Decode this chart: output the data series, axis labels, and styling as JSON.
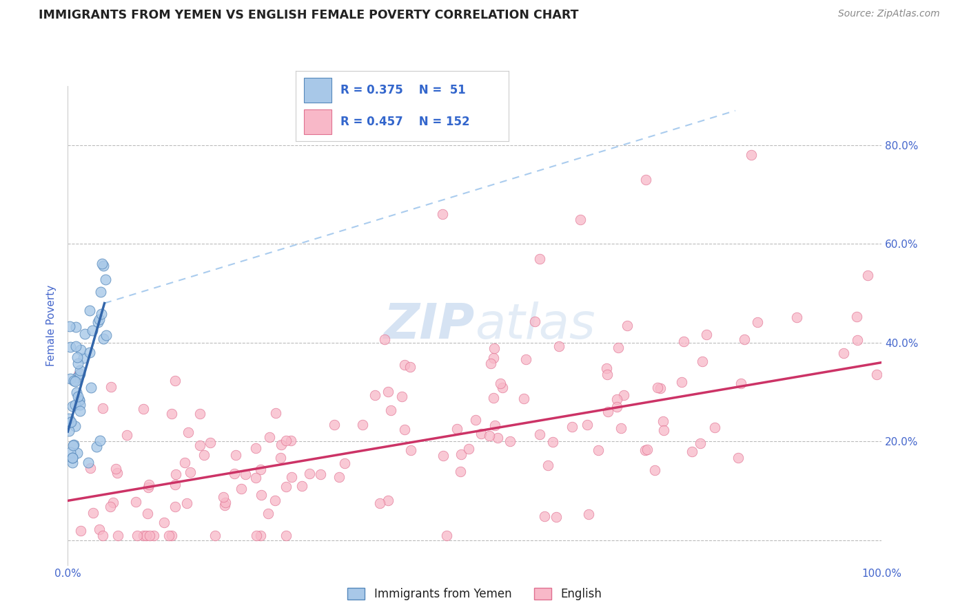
{
  "title": "IMMIGRANTS FROM YEMEN VS ENGLISH FEMALE POVERTY CORRELATION CHART",
  "source": "Source: ZipAtlas.com",
  "ylabel": "Female Poverty",
  "xlabel": "",
  "xlim": [
    0.0,
    1.0
  ],
  "ylim": [
    -0.05,
    0.92
  ],
  "xticks": [
    0.0,
    0.2,
    0.4,
    0.6,
    0.8,
    1.0
  ],
  "xticklabels": [
    "0.0%",
    "",
    "",
    "",
    "",
    "100.0%"
  ],
  "yticks": [
    0.0,
    0.2,
    0.4,
    0.6,
    0.8
  ],
  "yticklabels": [
    "",
    "20.0%",
    "40.0%",
    "60.0%",
    "80.0%"
  ],
  "grid_color": "#bbbbbb",
  "background_color": "#ffffff",
  "blue_scatter_color": "#a8c8e8",
  "blue_scatter_edge": "#5588bb",
  "pink_scatter_color": "#f8b8c8",
  "pink_scatter_edge": "#e07090",
  "blue_line_color": "#3366aa",
  "pink_line_color": "#cc3366",
  "dashed_line_color": "#aaccee",
  "title_color": "#222222",
  "axis_tick_color": "#4466cc",
  "legend_text_color": "#3366cc",
  "watermark_color": "#ccddf0",
  "legend_r1": "R = 0.375",
  "legend_n1": "N =  51",
  "legend_r2": "R = 0.457",
  "legend_n2": "N = 152",
  "yemen_line_x0": 0.0,
  "yemen_line_y0": 0.22,
  "yemen_line_x1": 0.045,
  "yemen_line_y1": 0.48,
  "dashed_line_x0": 0.045,
  "dashed_line_y0": 0.48,
  "dashed_line_x1": 0.82,
  "dashed_line_y1": 0.87,
  "english_line_x0": 0.0,
  "english_line_y0": 0.08,
  "english_line_x1": 1.0,
  "english_line_y1": 0.36
}
